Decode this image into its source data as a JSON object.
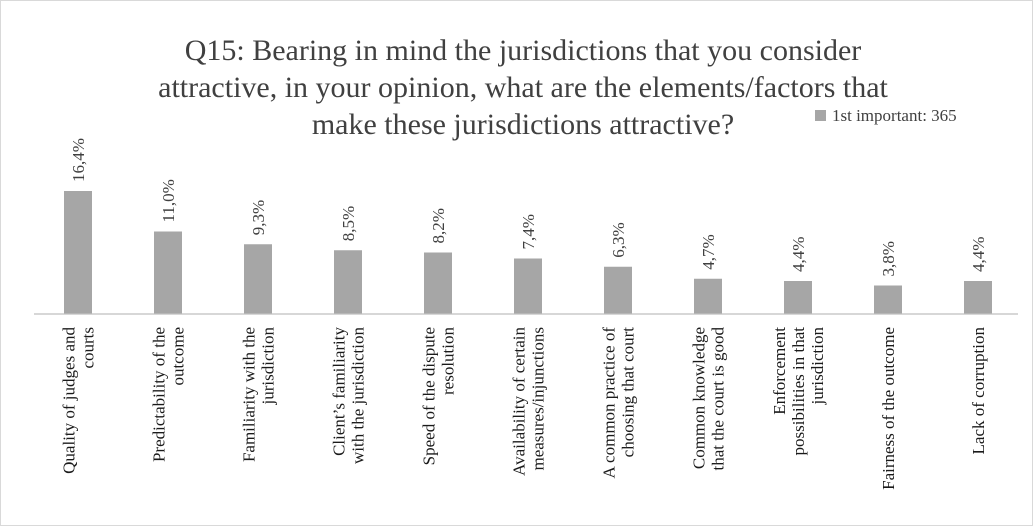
{
  "chart_data": {
    "type": "bar",
    "title_lines": [
      "Q15: Bearing in mind the jurisdictions that you consider",
      "attractive, in your opinion, what are the elements/factors that",
      "make these jurisdictions attractive?"
    ],
    "legend_position": "top-right",
    "grid": false,
    "ylim": [
      0,
      20
    ],
    "bar_color": "#a6a6a6",
    "axis_color": "#bfbfbf",
    "series": [
      {
        "name": "1st important: 365",
        "values": [
          16.4,
          11.0,
          9.3,
          8.5,
          8.2,
          7.4,
          6.3,
          4.7,
          4.4,
          3.8,
          4.4
        ],
        "labels": [
          "16,4%",
          "11,0%",
          "9,3%",
          "8,5%",
          "8,2%",
          "7,4%",
          "6,3%",
          "4,7%",
          "4,4%",
          "3,8%",
          "4,4%"
        ]
      }
    ],
    "categories": [
      [
        "Quality of judges and",
        "courts"
      ],
      [
        "Predictability of the",
        "outcome"
      ],
      [
        "Familiarity with the",
        "jurisdiction"
      ],
      [
        "Client’s familiarity",
        "with the jurisdiction"
      ],
      [
        "Speed of the dispute",
        "resolution"
      ],
      [
        "Availability of certain",
        "measures/injunctions"
      ],
      [
        "A common practice of",
        "choosing that court"
      ],
      [
        "Common knowledge",
        "that the court is good"
      ],
      [
        "Enforcement",
        "possibilities in that",
        "jurisdiction"
      ],
      [
        "Fairness of the outcome"
      ],
      [
        "Lack of corruption"
      ]
    ]
  }
}
